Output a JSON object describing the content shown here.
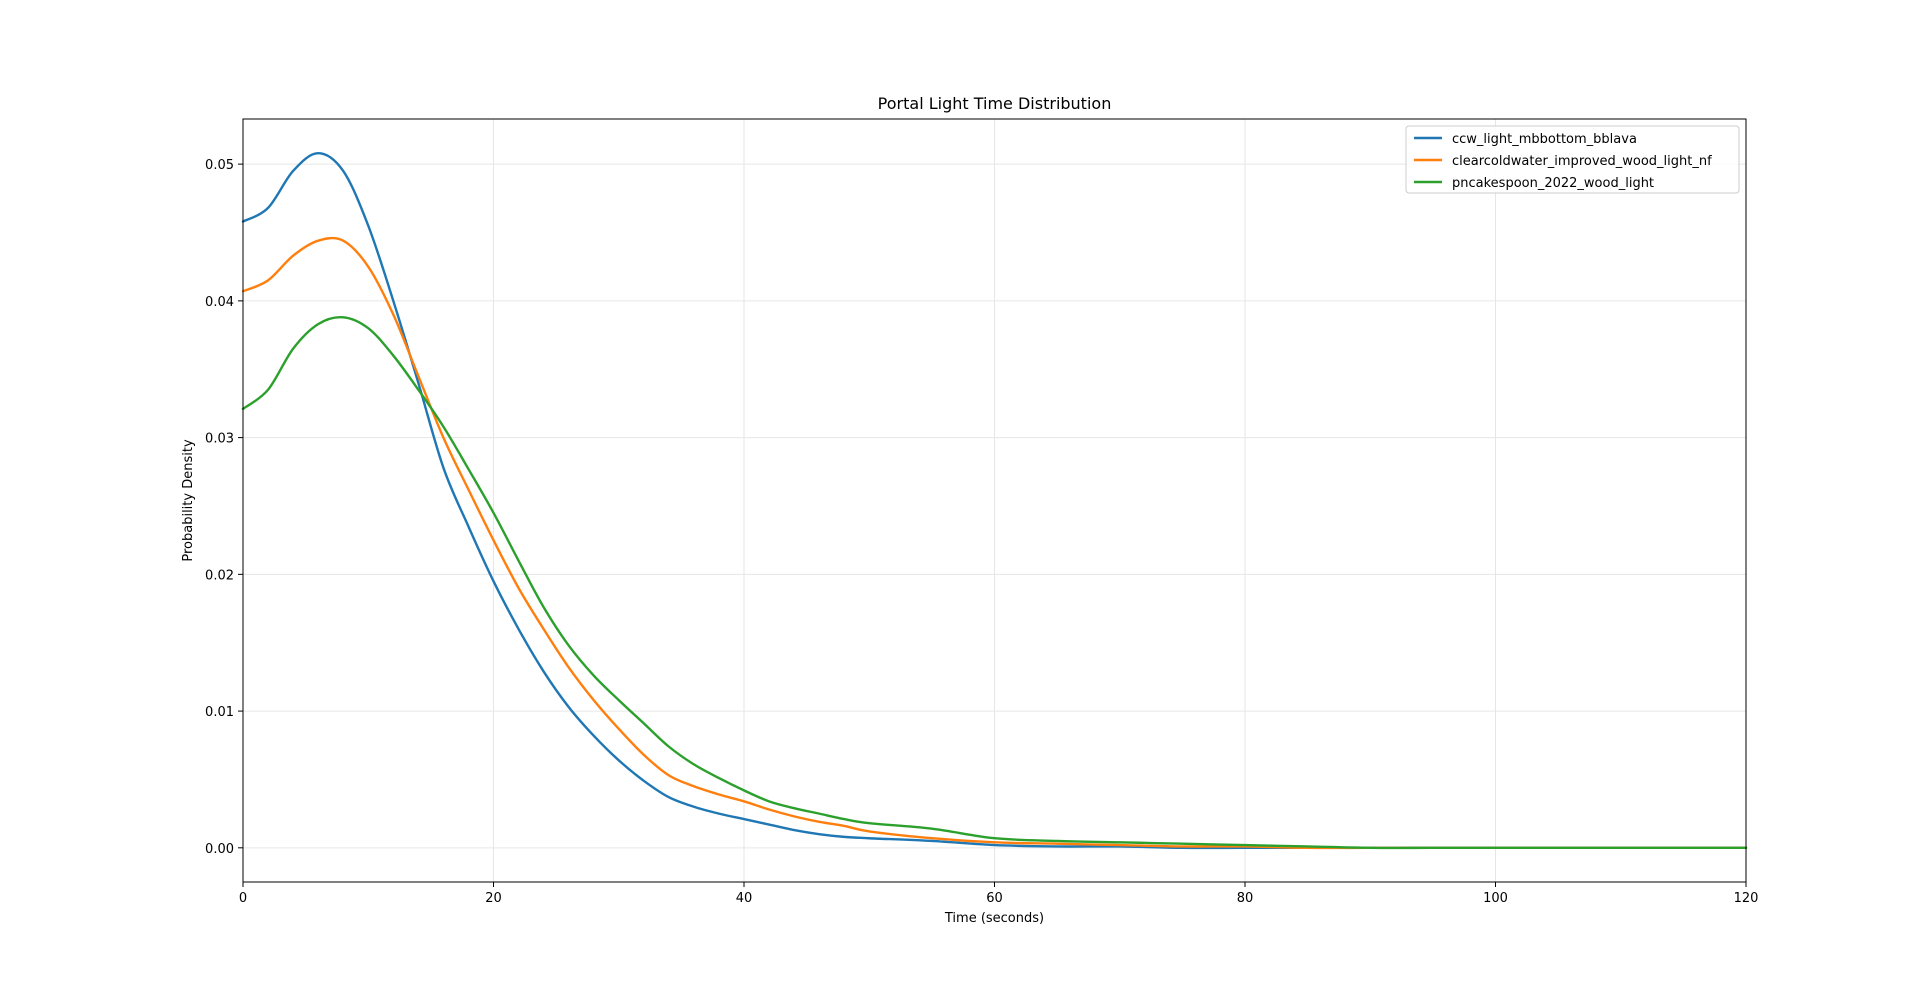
{
  "chart_data": {
    "type": "line",
    "title": "Portal Light Time Distribution",
    "xlabel": "Time (seconds)",
    "ylabel": "Probability Density",
    "xlim": [
      0,
      120
    ],
    "ylim": [
      -0.0025,
      0.0533
    ],
    "xticks": [
      0,
      20,
      40,
      60,
      80,
      100,
      120
    ],
    "yticks": [
      0.0,
      0.01,
      0.02,
      0.03,
      0.04,
      0.05
    ],
    "ytick_labels": [
      "0.00",
      "0.01",
      "0.02",
      "0.03",
      "0.04",
      "0.05"
    ],
    "grid": true,
    "legend_position": "upper-right",
    "x": [
      0,
      2,
      4,
      6,
      8,
      10,
      12,
      14,
      16,
      18,
      20,
      22,
      24,
      26,
      28,
      30,
      32,
      34,
      36,
      38,
      40,
      42,
      44,
      46,
      48,
      50,
      55,
      60,
      65,
      70,
      75,
      80,
      85,
      90,
      95,
      100,
      110,
      120
    ],
    "series": [
      {
        "name": "ccw_light_mbbottom_bblava",
        "color": "#1f77b4",
        "values": [
          0.0458,
          0.0468,
          0.0495,
          0.0508,
          0.0495,
          0.0455,
          0.04,
          0.034,
          0.0278,
          0.0235,
          0.0195,
          0.016,
          0.0129,
          0.0103,
          0.0082,
          0.0064,
          0.0049,
          0.0037,
          0.003,
          0.0025,
          0.0021,
          0.0017,
          0.0013,
          0.001,
          0.0008,
          0.0007,
          0.0005,
          0.0002,
          0.0001,
          0.0001,
          0.0,
          0.0,
          0.0,
          0.0,
          0.0,
          0.0,
          0.0,
          0.0
        ]
      },
      {
        "name": "clearcoldwater_improved_wood_light_nf",
        "color": "#ff7f0e",
        "values": [
          0.0407,
          0.0415,
          0.0433,
          0.0444,
          0.0444,
          0.0425,
          0.039,
          0.0345,
          0.03,
          0.0262,
          0.0225,
          0.019,
          0.016,
          0.0132,
          0.0108,
          0.0087,
          0.0068,
          0.0053,
          0.0045,
          0.0039,
          0.0034,
          0.0028,
          0.0023,
          0.0019,
          0.0016,
          0.0012,
          0.0007,
          0.0004,
          0.0003,
          0.0002,
          0.0001,
          0.0001,
          0.0,
          0.0,
          0.0,
          0.0,
          0.0,
          0.0
        ]
      },
      {
        "name": "pncakespoon_2022_wood_light",
        "color": "#2ca02c",
        "values": [
          0.0321,
          0.0335,
          0.0365,
          0.0383,
          0.0388,
          0.038,
          0.036,
          0.0335,
          0.0308,
          0.0277,
          0.0245,
          0.021,
          0.0176,
          0.0148,
          0.0126,
          0.0108,
          0.0091,
          0.0074,
          0.0061,
          0.0051,
          0.0042,
          0.0034,
          0.0029,
          0.0025,
          0.0021,
          0.0018,
          0.0014,
          0.0007,
          0.0005,
          0.0004,
          0.0003,
          0.0002,
          0.0001,
          0.0,
          0.0,
          0.0,
          0.0,
          0.0
        ]
      }
    ]
  }
}
